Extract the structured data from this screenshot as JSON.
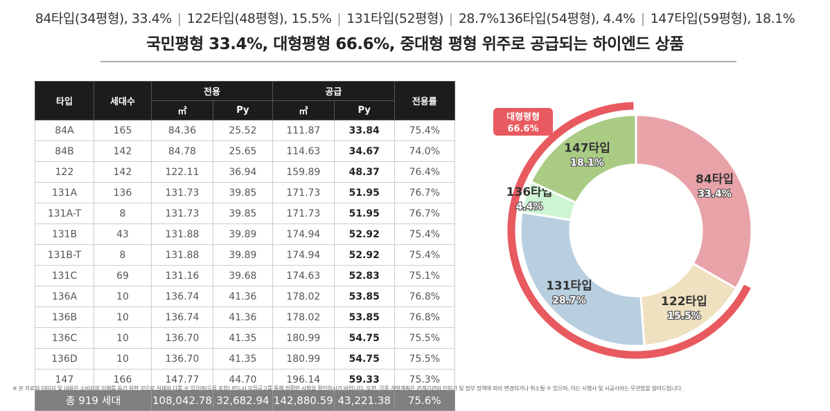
{
  "subtitle": [
    "84타입(34평형), 33.4%",
    "122타입(48평형), 15.5%",
    "131타입(52평형)",
    "28.7%136타입(54평형), 4.4%",
    "147타입(59평형), 18.1%"
  ],
  "title": "국민평형 33.4%, 대형평형 66.6%, 중대형 평형 위주로 공급되는 하이엔드 상품",
  "table": {
    "headers": {
      "type": "타입",
      "units": "세대수",
      "exclusive": "전용",
      "supply": "공급",
      "ratio": "전용률",
      "m2": "㎡",
      "py": "Py"
    },
    "rows": [
      [
        "84A",
        "165",
        "84.36",
        "25.52",
        "111.87",
        "33.84",
        "75.4%"
      ],
      [
        "84B",
        "142",
        "84.78",
        "25.65",
        "114.63",
        "34.67",
        "74.0%"
      ],
      [
        "122",
        "142",
        "122.11",
        "36.94",
        "159.89",
        "48.37",
        "76.4%"
      ],
      [
        "131A",
        "136",
        "131.73",
        "39.85",
        "171.73",
        "51.95",
        "76.7%"
      ],
      [
        "131A-T",
        "8",
        "131.73",
        "39.85",
        "171.73",
        "51.95",
        "76.7%"
      ],
      [
        "131B",
        "43",
        "131.88",
        "39.89",
        "174.94",
        "52.92",
        "75.4%"
      ],
      [
        "131B-T",
        "8",
        "131.88",
        "39.89",
        "174.94",
        "52.92",
        "75.4%"
      ],
      [
        "131C",
        "69",
        "131.16",
        "39.68",
        "174.63",
        "52.83",
        "75.1%"
      ],
      [
        "136A",
        "10",
        "136.74",
        "41.36",
        "178.02",
        "53.85",
        "76.8%"
      ],
      [
        "136B",
        "10",
        "136.74",
        "41.36",
        "178.02",
        "53.85",
        "76.8%"
      ],
      [
        "136C",
        "10",
        "136.70",
        "41.35",
        "180.99",
        "54.75",
        "75.5%"
      ],
      [
        "136D",
        "10",
        "136.70",
        "41.35",
        "180.99",
        "54.75",
        "75.5%"
      ],
      [
        "147",
        "166",
        "147.77",
        "44.70",
        "196.14",
        "59.33",
        "75.3%"
      ]
    ],
    "total": [
      "총 919 세대",
      "108,042.78",
      "32,682.94",
      "142,880.59",
      "43,221.38",
      "75.6%"
    ]
  },
  "chart_data": {
    "type": "pie",
    "slices": [
      {
        "name": "84타입",
        "value": 33.4,
        "label": "33.4%",
        "color": "#e8a3a8"
      },
      {
        "name": "122타입",
        "value": 15.5,
        "label": "15.5%",
        "color": "#efe0bf"
      },
      {
        "name": "131타입",
        "value": 28.7,
        "label": "28.7%",
        "color": "#b8cfe0"
      },
      {
        "name": "136타입",
        "value": 4.4,
        "label": "4.4%",
        "color": "#cdf5d3"
      },
      {
        "name": "147타입",
        "value": 18.1,
        "label": "18.1%",
        "color": "#aacb84"
      }
    ],
    "highlight": {
      "name": "대형평형",
      "label": "66.6%",
      "color": "#e85a5f"
    }
  },
  "note": "※ 본 자료의 이미지 및 내용은 소비자의 이해를 돕기 위한 것으로 실제와 다를 수 있으며(오류 포함) 반드시 모집공고를 통해 정확한 사항을 확인하시기 바랍니다. 또한, 각종 개발계획은 관계기관의 인허가 및 정부 정책에 따라 변경되거나 취소될 수 있으며, 이는 시행사 및 시공사와는 무관함을 알려드립니다."
}
